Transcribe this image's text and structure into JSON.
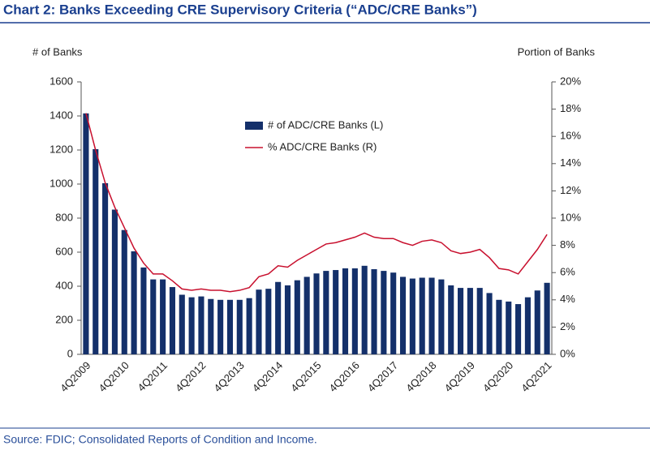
{
  "chart_data": {
    "type": "bar",
    "title": "Chart 2: Banks Exceeding CRE Supervisory Criteria (“ADC/CRE Banks”)",
    "ylabel": "# of Banks",
    "y2label": "Portion of Banks",
    "source": "Source: FDIC; Consolidated Reports of Condition and Income.",
    "categories": [
      "4Q2009",
      null,
      null,
      null,
      "4Q2010",
      null,
      null,
      null,
      "4Q2011",
      null,
      null,
      null,
      "4Q2012",
      null,
      null,
      null,
      "4Q2013",
      null,
      null,
      null,
      "4Q2014",
      null,
      null,
      null,
      "4Q2015",
      null,
      null,
      null,
      "4Q2016",
      null,
      null,
      null,
      "4Q2017",
      null,
      null,
      null,
      "4Q2018",
      null,
      null,
      null,
      "4Q2019",
      null,
      null,
      null,
      "4Q2020",
      null,
      null,
      null,
      "4Q2021"
    ],
    "series": [
      {
        "name": "# of ADC/CRE Banks (L)",
        "type": "bar",
        "color": "#14306a",
        "values": [
          1415,
          1205,
          1005,
          850,
          730,
          605,
          510,
          440,
          440,
          395,
          350,
          335,
          340,
          325,
          320,
          320,
          320,
          330,
          380,
          385,
          425,
          405,
          435,
          455,
          475,
          490,
          495,
          505,
          505,
          520,
          500,
          490,
          480,
          455,
          445,
          450,
          450,
          440,
          405,
          390,
          390,
          390,
          360,
          320,
          310,
          295,
          335,
          375,
          420
        ]
      },
      {
        "name": "% ADC/CRE Banks (R)",
        "type": "line",
        "axis": "y2",
        "color": "#c8102e",
        "values": [
          17.7,
          15,
          12.6,
          10.8,
          9.3,
          7.8,
          6.7,
          5.9,
          5.9,
          5.4,
          4.8,
          4.7,
          4.8,
          4.7,
          4.7,
          4.6,
          4.7,
          4.9,
          5.7,
          5.9,
          6.5,
          6.4,
          6.9,
          7.3,
          7.7,
          8.1,
          8.2,
          8.4,
          8.6,
          8.9,
          8.6,
          8.5,
          8.5,
          8.2,
          8.0,
          8.3,
          8.4,
          8.2,
          7.6,
          7.4,
          7.5,
          7.7,
          7.1,
          6.3,
          6.2,
          5.9,
          6.8,
          7.7,
          8.8
        ]
      }
    ],
    "ylim": [
      0,
      1600
    ],
    "yticks": [
      0,
      200,
      400,
      600,
      800,
      1000,
      1200,
      1400,
      1600
    ],
    "y2lim": [
      0,
      20
    ],
    "y2ticks": [
      {
        "value": 0,
        "label": "0%"
      },
      {
        "value": 2,
        "label": "2%"
      },
      {
        "value": 4,
        "label": "4%"
      },
      {
        "value": 6,
        "label": "6%"
      },
      {
        "value": 8,
        "label": "8%"
      },
      {
        "value": 10,
        "label": "10%"
      },
      {
        "value": 12,
        "label": "12%"
      },
      {
        "value": 14,
        "label": "14%"
      },
      {
        "value": 16,
        "label": "16%"
      },
      {
        "value": 18,
        "label": "18%"
      },
      {
        "value": 20,
        "label": "20%"
      }
    ],
    "grid": false
  }
}
